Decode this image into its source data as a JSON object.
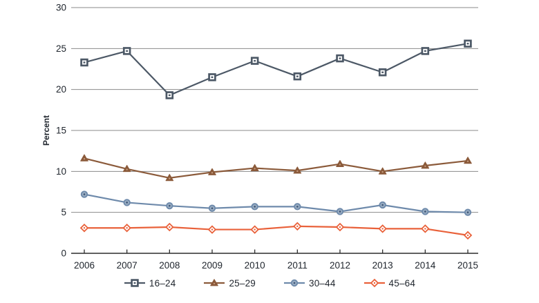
{
  "chart_data": {
    "type": "line",
    "title": "",
    "xlabel": "",
    "ylabel": "Percent",
    "ylim": [
      0,
      30
    ],
    "yticks": [
      0,
      5,
      10,
      15,
      20,
      25,
      30
    ],
    "gridline_values": [
      5,
      10,
      15,
      20,
      25,
      30
    ],
    "grid_on": true,
    "legend_position": "bottom",
    "x": [
      "2006",
      "2007",
      "2008",
      "2009",
      "2010",
      "2011",
      "2012",
      "2013",
      "2014",
      "2015"
    ],
    "series": [
      {
        "name": "16–24",
        "marker": "square",
        "color": "#4c5866",
        "values": [
          23.3,
          24.7,
          19.3,
          21.5,
          23.5,
          21.6,
          23.8,
          22.1,
          24.7,
          25.6
        ]
      },
      {
        "name": "25–29",
        "marker": "triangle",
        "color": "#8b5a3a",
        "values": [
          11.6,
          10.3,
          9.2,
          9.9,
          10.4,
          10.1,
          10.9,
          10.0,
          10.7,
          11.3
        ]
      },
      {
        "name": "30–44",
        "marker": "circle",
        "color": "#6e8aab",
        "values": [
          7.2,
          6.2,
          5.8,
          5.5,
          5.7,
          5.7,
          5.1,
          5.9,
          5.1,
          5.0
        ]
      },
      {
        "name": "45–64",
        "marker": "diamond",
        "color": "#e9613a",
        "values": [
          3.1,
          3.1,
          3.2,
          2.9,
          2.9,
          3.3,
          3.2,
          3.0,
          3.0,
          2.2
        ]
      }
    ],
    "colors": {
      "grid": "#8a8a8a",
      "axis": "#2b2b2b",
      "text": "#20262e",
      "background": "#ffffff"
    }
  }
}
